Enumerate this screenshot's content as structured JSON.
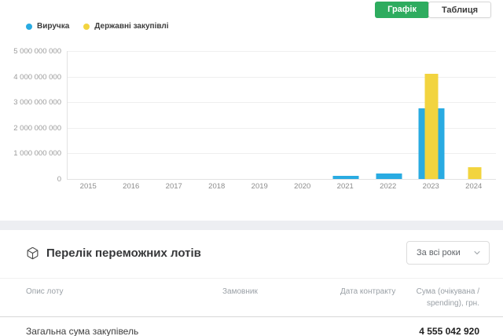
{
  "toolbar": {
    "chart_tab": "Графік",
    "table_tab": "Таблиця"
  },
  "legend": [
    {
      "label": "Виручка",
      "color": "#29abe2"
    },
    {
      "label": "Державні закупівлі",
      "color": "#f2d43f"
    }
  ],
  "chart_data": {
    "type": "bar",
    "categories": [
      "2015",
      "2016",
      "2017",
      "2018",
      "2019",
      "2020",
      "2021",
      "2022",
      "2023",
      "2024"
    ],
    "series": [
      {
        "name": "Виручка",
        "color": "#29abe2",
        "values": [
          0,
          0,
          0,
          0,
          0,
          0,
          120000000,
          210000000,
          2750000000,
          0
        ]
      },
      {
        "name": "Державні закупівлі",
        "color": "#f2d43f",
        "values": [
          0,
          0,
          0,
          0,
          0,
          0,
          0,
          0,
          4100000000,
          450000000
        ]
      }
    ],
    "ylim": [
      0,
      5000000000
    ],
    "ytick_step": 1000000000,
    "grid": true,
    "legend_position": "top-left"
  },
  "lots_section": {
    "title": "Перелік переможних лотів",
    "filter_value": "За всі роки",
    "table": {
      "headers": [
        "Опис лоту",
        "Замовник",
        "Дата контракту",
        "Сума (очікувана / spending), грн."
      ],
      "rows": [],
      "footer": {
        "label": "Загальна сума закупівель",
        "value": "4 555 042 920"
      }
    }
  },
  "colors": {
    "accent_green": "#2eac5f",
    "bar_blue": "#29abe2",
    "bar_yellow": "#f2d43f",
    "divider_band": "#edeef2"
  }
}
